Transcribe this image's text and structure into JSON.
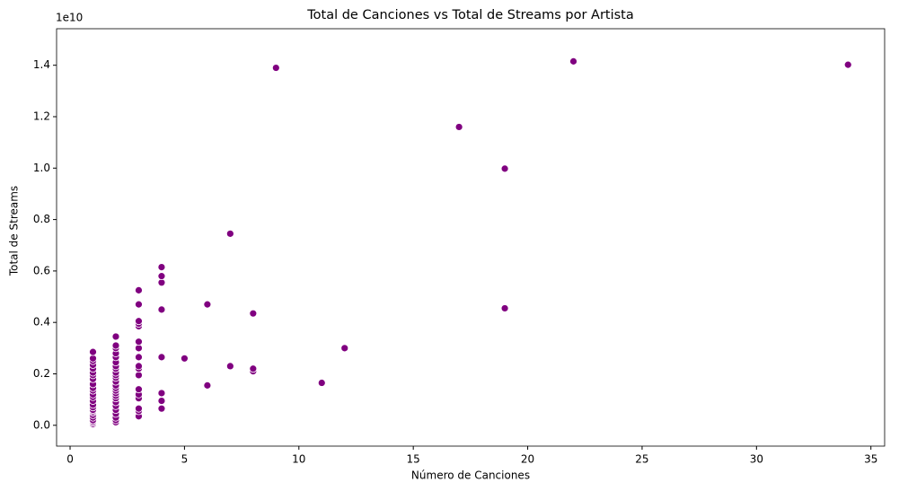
{
  "chart_data": {
    "type": "scatter",
    "title": "Total de Canciones vs Total de Streams por Artista",
    "xlabel": "Número de Canciones",
    "ylabel": "Total de Streams",
    "y_offset_label": "1e10",
    "color": "#800080",
    "x": [
      1,
      1,
      1,
      1,
      1,
      1,
      1,
      1,
      1,
      1,
      1,
      1,
      1,
      1,
      1,
      1,
      1,
      1,
      1,
      1,
      1,
      1,
      1,
      1,
      1,
      1,
      1,
      2,
      2,
      2,
      2,
      2,
      2,
      2,
      2,
      2,
      2,
      2,
      2,
      2,
      2,
      2,
      2,
      2,
      2,
      2,
      2,
      2,
      2,
      2,
      2,
      2,
      3,
      3,
      3,
      3,
      3,
      3,
      3,
      3,
      3,
      3,
      3,
      3,
      3,
      3,
      3,
      3,
      3,
      4,
      4,
      4,
      4,
      4,
      4,
      4,
      4,
      5,
      6,
      6,
      7,
      7,
      8,
      8,
      8,
      9,
      11,
      12,
      17,
      19,
      19,
      22,
      34
    ],
    "y": [
      0.0,
      0.002,
      0.005,
      0.01,
      0.015,
      0.02,
      0.03,
      0.04,
      0.05,
      0.055,
      0.06,
      0.07,
      0.08,
      0.095,
      0.11,
      0.12,
      0.135,
      0.145,
      0.16,
      0.18,
      0.195,
      0.205,
      0.22,
      0.235,
      0.25,
      0.26,
      0.285,
      0.012,
      0.02,
      0.03,
      0.045,
      0.06,
      0.075,
      0.09,
      0.105,
      0.115,
      0.125,
      0.135,
      0.145,
      0.155,
      0.17,
      0.185,
      0.195,
      0.205,
      0.22,
      0.23,
      0.245,
      0.265,
      0.28,
      0.3,
      0.31,
      0.345,
      0.035,
      0.055,
      0.065,
      0.105,
      0.12,
      0.14,
      0.195,
      0.22,
      0.23,
      0.265,
      0.3,
      0.325,
      0.385,
      0.395,
      0.405,
      0.47,
      0.525,
      0.065,
      0.095,
      0.125,
      0.265,
      0.45,
      0.555,
      0.58,
      0.615,
      0.26,
      0.155,
      0.47,
      0.23,
      0.745,
      0.21,
      0.22,
      0.435,
      1.39,
      0.165,
      0.3,
      1.16,
      0.455,
      0.998,
      1.415,
      1.402
    ],
    "xlim": [
      -0.59,
      35.6
    ],
    "ylim": [
      -0.081,
      1.542
    ],
    "xticks": [
      0,
      5,
      10,
      15,
      20,
      25,
      30,
      35
    ],
    "yticks": [
      {
        "value": 0,
        "label": "0.0"
      },
      0.2,
      0.4,
      0.6,
      0.8,
      {
        "value": 1,
        "label": "1.0"
      },
      1.2,
      1.4
    ]
  }
}
